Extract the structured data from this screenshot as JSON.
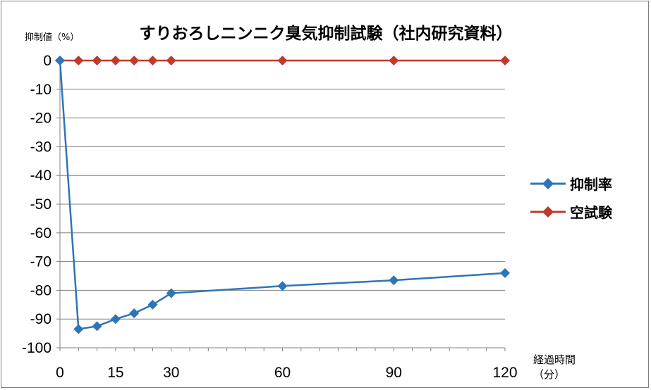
{
  "chart_data": {
    "type": "line",
    "title": "すりおろしニンニク臭気抑制試験（社内研究資料）",
    "ylabel": "抑制値（%）",
    "xlabel": "経過時間",
    "xunit": "（分）",
    "ylim": [
      -100,
      0
    ],
    "xlim": [
      0,
      120
    ],
    "yticks": [
      0,
      -10,
      -20,
      -30,
      -40,
      -50,
      -60,
      -70,
      -80,
      -90,
      -100
    ],
    "xtick_labels": [
      0,
      15,
      30,
      60,
      90,
      120
    ],
    "grid": "horizontal",
    "legend_position": "right",
    "series": [
      {
        "name": "抑制率",
        "color": "#2e75b6",
        "x": [
          0,
          5,
          10,
          15,
          20,
          25,
          30,
          60,
          90,
          120
        ],
        "y": [
          0,
          -93.5,
          -92.5,
          -90,
          -88,
          -85,
          -81,
          -78.5,
          -76.5,
          -74
        ]
      },
      {
        "name": "空試験",
        "color": "#c0392b",
        "x": [
          0,
          5,
          10,
          15,
          20,
          25,
          30,
          60,
          90,
          120
        ],
        "y": [
          0,
          0,
          0,
          0,
          0,
          0,
          0,
          0,
          0,
          0
        ]
      }
    ]
  }
}
